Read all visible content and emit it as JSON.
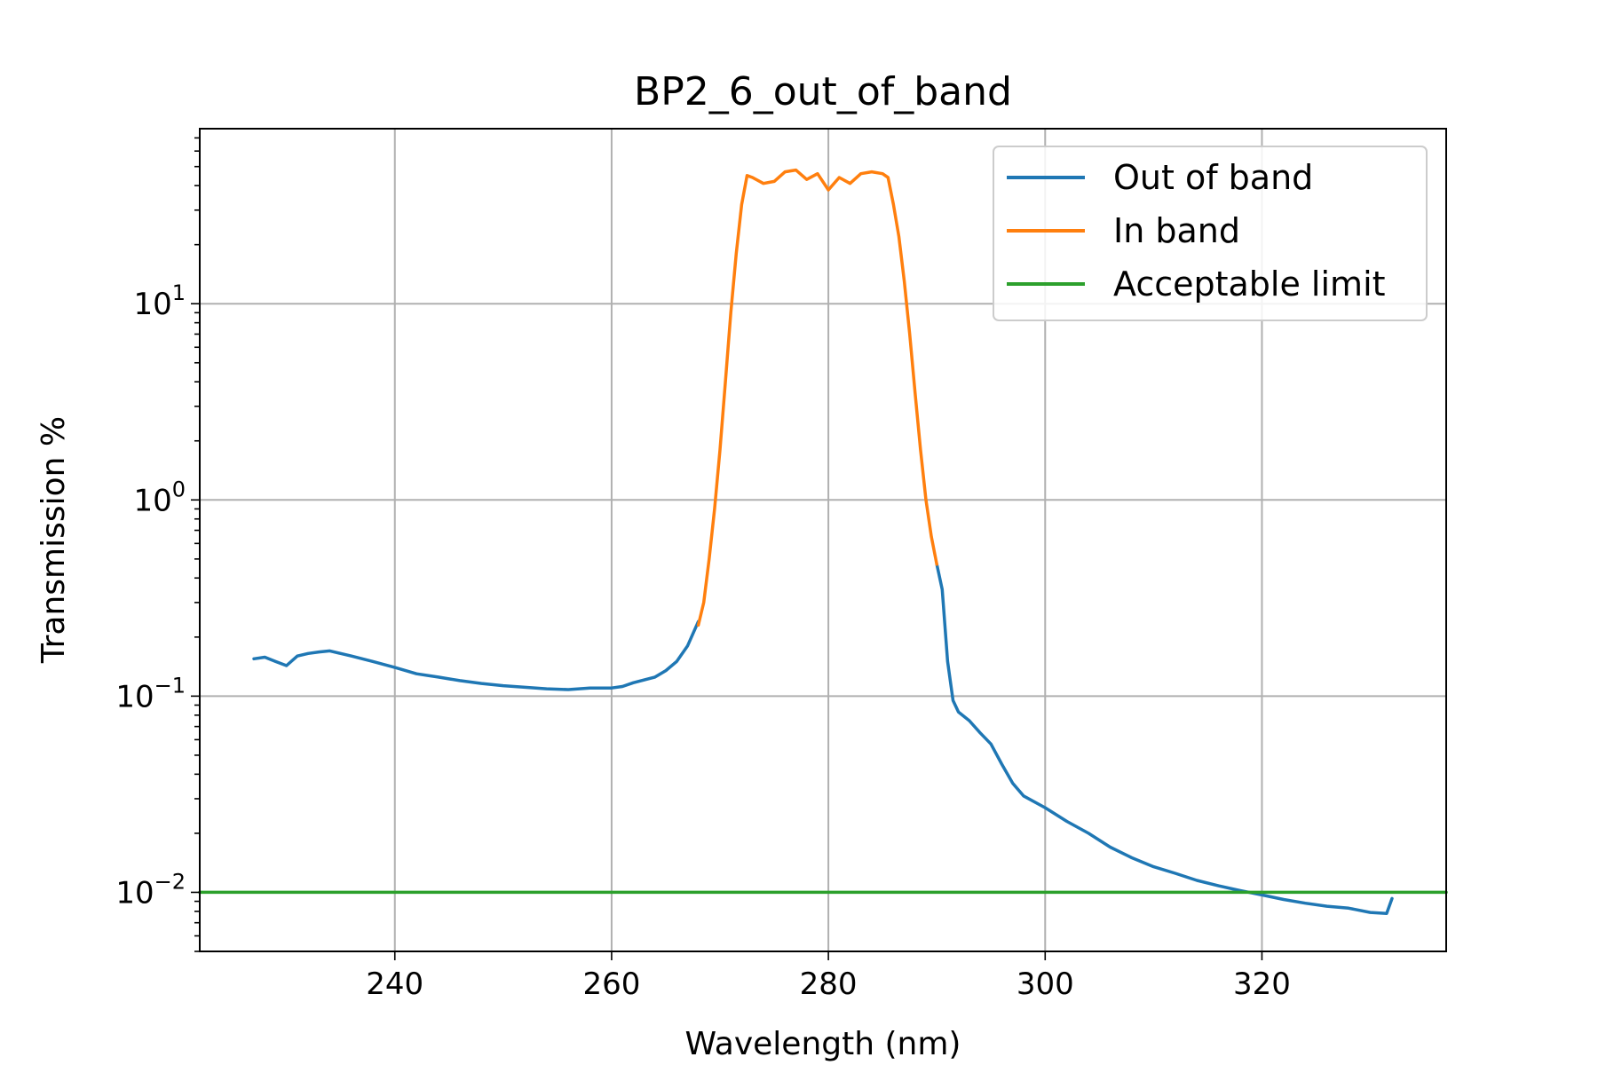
{
  "chart_data": {
    "type": "line",
    "title": "BP2_6_out_of_band",
    "xlabel": "Wavelength (nm)",
    "ylabel": "Transmission %",
    "xlim": [
      222,
      337
    ],
    "ylim": [
      0.005,
      78
    ],
    "yscale": "log",
    "grid": true,
    "legend_position": "top-right",
    "x_ticks": [
      240,
      260,
      280,
      300,
      320
    ],
    "y_ticks": [
      {
        "value": 0.01,
        "base": "10",
        "exp": "−2"
      },
      {
        "value": 0.1,
        "base": "10",
        "exp": "−1"
      },
      {
        "value": 1,
        "base": "10",
        "exp": "0"
      },
      {
        "value": 10,
        "base": "10",
        "exp": "1"
      }
    ],
    "series": [
      {
        "name": "Out of band",
        "color": "#1f77b4",
        "segments": [
          [
            [
              227,
              0.155
            ],
            [
              228,
              0.158
            ],
            [
              229,
              0.15
            ],
            [
              230,
              0.143
            ],
            [
              231,
              0.16
            ],
            [
              232,
              0.165
            ],
            [
              233,
              0.168
            ],
            [
              234,
              0.17
            ],
            [
              235,
              0.165
            ],
            [
              236,
              0.16
            ],
            [
              238,
              0.15
            ],
            [
              240,
              0.14
            ],
            [
              242,
              0.13
            ],
            [
              244,
              0.125
            ],
            [
              246,
              0.12
            ],
            [
              248,
              0.116
            ],
            [
              250,
              0.113
            ],
            [
              252,
              0.111
            ],
            [
              254,
              0.109
            ],
            [
              256,
              0.108
            ],
            [
              258,
              0.11
            ],
            [
              260,
              0.11
            ],
            [
              261,
              0.112
            ],
            [
              262,
              0.117
            ],
            [
              264,
              0.125
            ],
            [
              265,
              0.135
            ],
            [
              266,
              0.15
            ],
            [
              267,
              0.18
            ],
            [
              268,
              0.24
            ]
          ],
          [
            [
              290,
              0.47
            ],
            [
              290.5,
              0.35
            ],
            [
              291,
              0.15
            ],
            [
              291.5,
              0.095
            ],
            [
              292,
              0.083
            ],
            [
              293,
              0.075
            ],
            [
              294,
              0.065
            ],
            [
              295,
              0.057
            ],
            [
              296,
              0.045
            ],
            [
              297,
              0.036
            ],
            [
              298,
              0.031
            ],
            [
              300,
              0.027
            ],
            [
              302,
              0.023
            ],
            [
              304,
              0.02
            ],
            [
              306,
              0.017
            ],
            [
              308,
              0.015
            ],
            [
              310,
              0.0135
            ],
            [
              312,
              0.0125
            ],
            [
              314,
              0.0115
            ],
            [
              316,
              0.0108
            ],
            [
              318,
              0.0102
            ],
            [
              320,
              0.0097
            ],
            [
              322,
              0.0092
            ],
            [
              324,
              0.0088
            ],
            [
              326,
              0.0085
            ],
            [
              328,
              0.0083
            ],
            [
              330,
              0.0079
            ],
            [
              331.5,
              0.0078
            ],
            [
              332,
              0.0093
            ]
          ]
        ]
      },
      {
        "name": "In band",
        "color": "#ff7f0e",
        "segments": [
          [
            [
              268,
              0.23
            ],
            [
              268.5,
              0.3
            ],
            [
              269,
              0.5
            ],
            [
              269.5,
              0.9
            ],
            [
              270,
              1.8
            ],
            [
              270.5,
              4.0
            ],
            [
              271,
              9.0
            ],
            [
              271.5,
              18
            ],
            [
              272,
              32
            ],
            [
              272.5,
              45
            ],
            [
              273,
              44
            ],
            [
              274,
              41
            ],
            [
              275,
              42
            ],
            [
              276,
              47
            ],
            [
              277,
              48
            ],
            [
              278,
              43
            ],
            [
              279,
              46
            ],
            [
              280,
              38
            ],
            [
              281,
              44
            ],
            [
              282,
              41
            ],
            [
              283,
              46
            ],
            [
              284,
              47
            ],
            [
              285,
              46
            ],
            [
              285.5,
              44
            ],
            [
              286,
              32
            ],
            [
              286.5,
              22
            ],
            [
              287,
              13
            ],
            [
              287.5,
              7.0
            ],
            [
              288,
              3.5
            ],
            [
              288.5,
              1.8
            ],
            [
              289,
              1.0
            ],
            [
              289.5,
              0.65
            ],
            [
              290,
              0.47
            ]
          ]
        ]
      },
      {
        "name": "Acceptable limit",
        "color": "#2ca02c",
        "segments": [
          [
            [
              222,
              0.01
            ],
            [
              337,
              0.01
            ]
          ]
        ]
      }
    ]
  }
}
